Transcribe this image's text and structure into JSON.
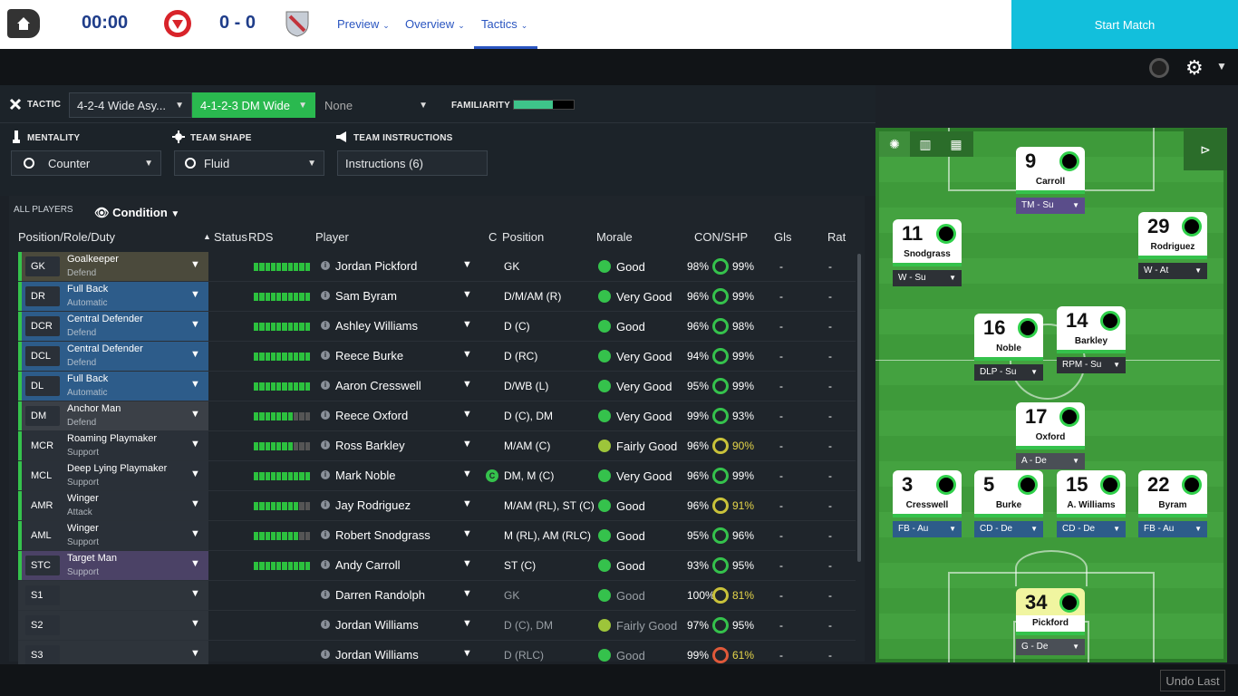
{
  "header": {
    "clock": "00:00",
    "score": "0 - 0",
    "nav": [
      {
        "label": "Preview"
      },
      {
        "label": "Overview"
      },
      {
        "label": "Tactics"
      }
    ],
    "start_label": "Start Match"
  },
  "tactic_bar": {
    "tactic_label": "TACTIC",
    "tactic1": "4-2-4 Wide Asy...",
    "tactic2": "4-1-2-3 DM Wide",
    "tactic3": "None",
    "familiarity_label": "FAMILIARITY",
    "familiarity_value": 0.65
  },
  "controls": {
    "mentality_label": "MENTALITY",
    "mentality_value": "Counter",
    "shape_label": "TEAM SHAPE",
    "shape_value": "Fluid",
    "instructions_label": "TEAM INSTRUCTIONS",
    "instructions_value": "Instructions (6)"
  },
  "table": {
    "all_players": "ALL PLAYERS",
    "view": "Condition",
    "headers": {
      "position_role": "Position/Role/Duty",
      "status": "Status",
      "rds": "RDS",
      "player": "Player",
      "c": "C",
      "position": "Position",
      "morale": "Morale",
      "conshp": "CON/SHP",
      "gls": "Gls",
      "rat": "Rat"
    },
    "rows": [
      {
        "pos": "GK",
        "role": "Goalkeeper",
        "duty": "Defend",
        "player": "Jordan Pickford",
        "positions": "GK",
        "morale": "Good",
        "con": "98%",
        "shp": "99%",
        "gls": "-",
        "rat": "-",
        "rds": 10,
        "color": "#4b4a3c"
      },
      {
        "pos": "DR",
        "role": "Full Back",
        "duty": "Automatic",
        "player": "Sam Byram",
        "positions": "D/M/AM (R)",
        "morale": "Very Good",
        "con": "96%",
        "shp": "99%",
        "gls": "-",
        "rat": "-",
        "rds": 10,
        "color": "#2d5c8a"
      },
      {
        "pos": "DCR",
        "role": "Central Defender",
        "duty": "Defend",
        "player": "Ashley Williams",
        "positions": "D (C)",
        "morale": "Good",
        "con": "96%",
        "shp": "98%",
        "gls": "-",
        "rat": "-",
        "rds": 10,
        "color": "#2d5c8a"
      },
      {
        "pos": "DCL",
        "role": "Central Defender",
        "duty": "Defend",
        "player": "Reece Burke",
        "positions": "D (RC)",
        "morale": "Very Good",
        "con": "94%",
        "shp": "99%",
        "gls": "-",
        "rat": "-",
        "rds": 10,
        "color": "#2d5c8a"
      },
      {
        "pos": "DL",
        "role": "Full Back",
        "duty": "Automatic",
        "player": "Aaron Cresswell",
        "positions": "D/WB (L)",
        "morale": "Very Good",
        "con": "95%",
        "shp": "99%",
        "gls": "-",
        "rat": "-",
        "rds": 10,
        "color": "#2d5c8a"
      },
      {
        "pos": "DM",
        "role": "Anchor Man",
        "duty": "Defend",
        "player": "Reece Oxford",
        "positions": "D (C), DM",
        "morale": "Very Good",
        "con": "99%",
        "shp": "93%",
        "gls": "-",
        "rat": "-",
        "rds": 7,
        "color": "#3b4047"
      },
      {
        "pos": "MCR",
        "role": "Roaming Playmaker",
        "duty": "Support",
        "player": "Ross Barkley",
        "positions": "M/AM (C)",
        "morale": "Fairly Good",
        "con": "96%",
        "shp": "90%",
        "gls": "-",
        "rat": "-",
        "rds": 7,
        "color": "#2a3038"
      },
      {
        "pos": "MCL",
        "role": "Deep Lying Playmaker",
        "duty": "Support",
        "player": "Mark Noble",
        "positions": "DM, M (C)",
        "morale": "Very Good",
        "con": "96%",
        "shp": "99%",
        "gls": "-",
        "rat": "-",
        "rds": 10,
        "color": "#2a3038",
        "captain": "C"
      },
      {
        "pos": "AMR",
        "role": "Winger",
        "duty": "Attack",
        "player": "Jay Rodriguez",
        "positions": "M/AM (RL), ST (C)",
        "morale": "Good",
        "con": "96%",
        "shp": "91%",
        "gls": "-",
        "rat": "-",
        "rds": 8,
        "color": "#2a3038"
      },
      {
        "pos": "AML",
        "role": "Winger",
        "duty": "Support",
        "player": "Robert Snodgrass",
        "positions": "M (RL), AM (RLC)",
        "morale": "Good",
        "con": "95%",
        "shp": "96%",
        "gls": "-",
        "rat": "-",
        "rds": 8,
        "color": "#2a3038"
      },
      {
        "pos": "STC",
        "role": "Target Man",
        "duty": "Support",
        "player": "Andy Carroll",
        "positions": "ST (C)",
        "morale": "Good",
        "con": "93%",
        "shp": "95%",
        "gls": "-",
        "rat": "-",
        "rds": 10,
        "color": "#4b4266"
      },
      {
        "pos": "S1",
        "role": "",
        "duty": "",
        "player": "Darren Randolph",
        "positions": "GK",
        "morale": "Good",
        "con": "100%",
        "shp": "81%",
        "gls": "-",
        "rat": "-",
        "rds": 0,
        "color": "#2a3038"
      },
      {
        "pos": "S2",
        "role": "",
        "duty": "",
        "player": "Jordan Williams",
        "positions": "D (C), DM",
        "morale": "Fairly Good",
        "con": "97%",
        "shp": "95%",
        "gls": "-",
        "rat": "-",
        "rds": 0,
        "color": "#2a3038"
      },
      {
        "pos": "S3",
        "role": "",
        "duty": "",
        "player": "Jordan Williams",
        "positions": "D (RLC)",
        "morale": "Good",
        "con": "99%",
        "shp": "61%",
        "gls": "-",
        "rat": "-",
        "rds": 0,
        "color": "#2a3038"
      }
    ]
  },
  "pitch": {
    "players": [
      {
        "num": "9",
        "name": "Carroll",
        "role": "TM - Su",
        "pill": "#5a4d8a"
      },
      {
        "num": "11",
        "name": "Snodgrass",
        "role": "W - Su",
        "pill": "#2d3136"
      },
      {
        "num": "29",
        "name": "Rodriguez",
        "role": "W - At",
        "pill": "#2d3136"
      },
      {
        "num": "16",
        "name": "Noble",
        "role": "DLP - Su",
        "pill": "#2d3136"
      },
      {
        "num": "14",
        "name": "Barkley",
        "role": "RPM - Su",
        "pill": "#2d3136"
      },
      {
        "num": "17",
        "name": "Oxford",
        "role": "A - De",
        "pill": "#4a4f56"
      },
      {
        "num": "3",
        "name": "Cresswell",
        "role": "FB - Au",
        "pill": "#2d5c8a"
      },
      {
        "num": "5",
        "name": "Burke",
        "role": "CD - De",
        "pill": "#2d5c8a"
      },
      {
        "num": "15",
        "name": "A. Williams",
        "role": "CD - De",
        "pill": "#2d5c8a"
      },
      {
        "num": "22",
        "name": "Byram",
        "role": "FB - Au",
        "pill": "#2d5c8a"
      },
      {
        "num": "34",
        "name": "Pickford",
        "role": "G - De",
        "pill": "#4a4f56"
      }
    ]
  },
  "footer": {
    "undo": "Undo Last"
  }
}
